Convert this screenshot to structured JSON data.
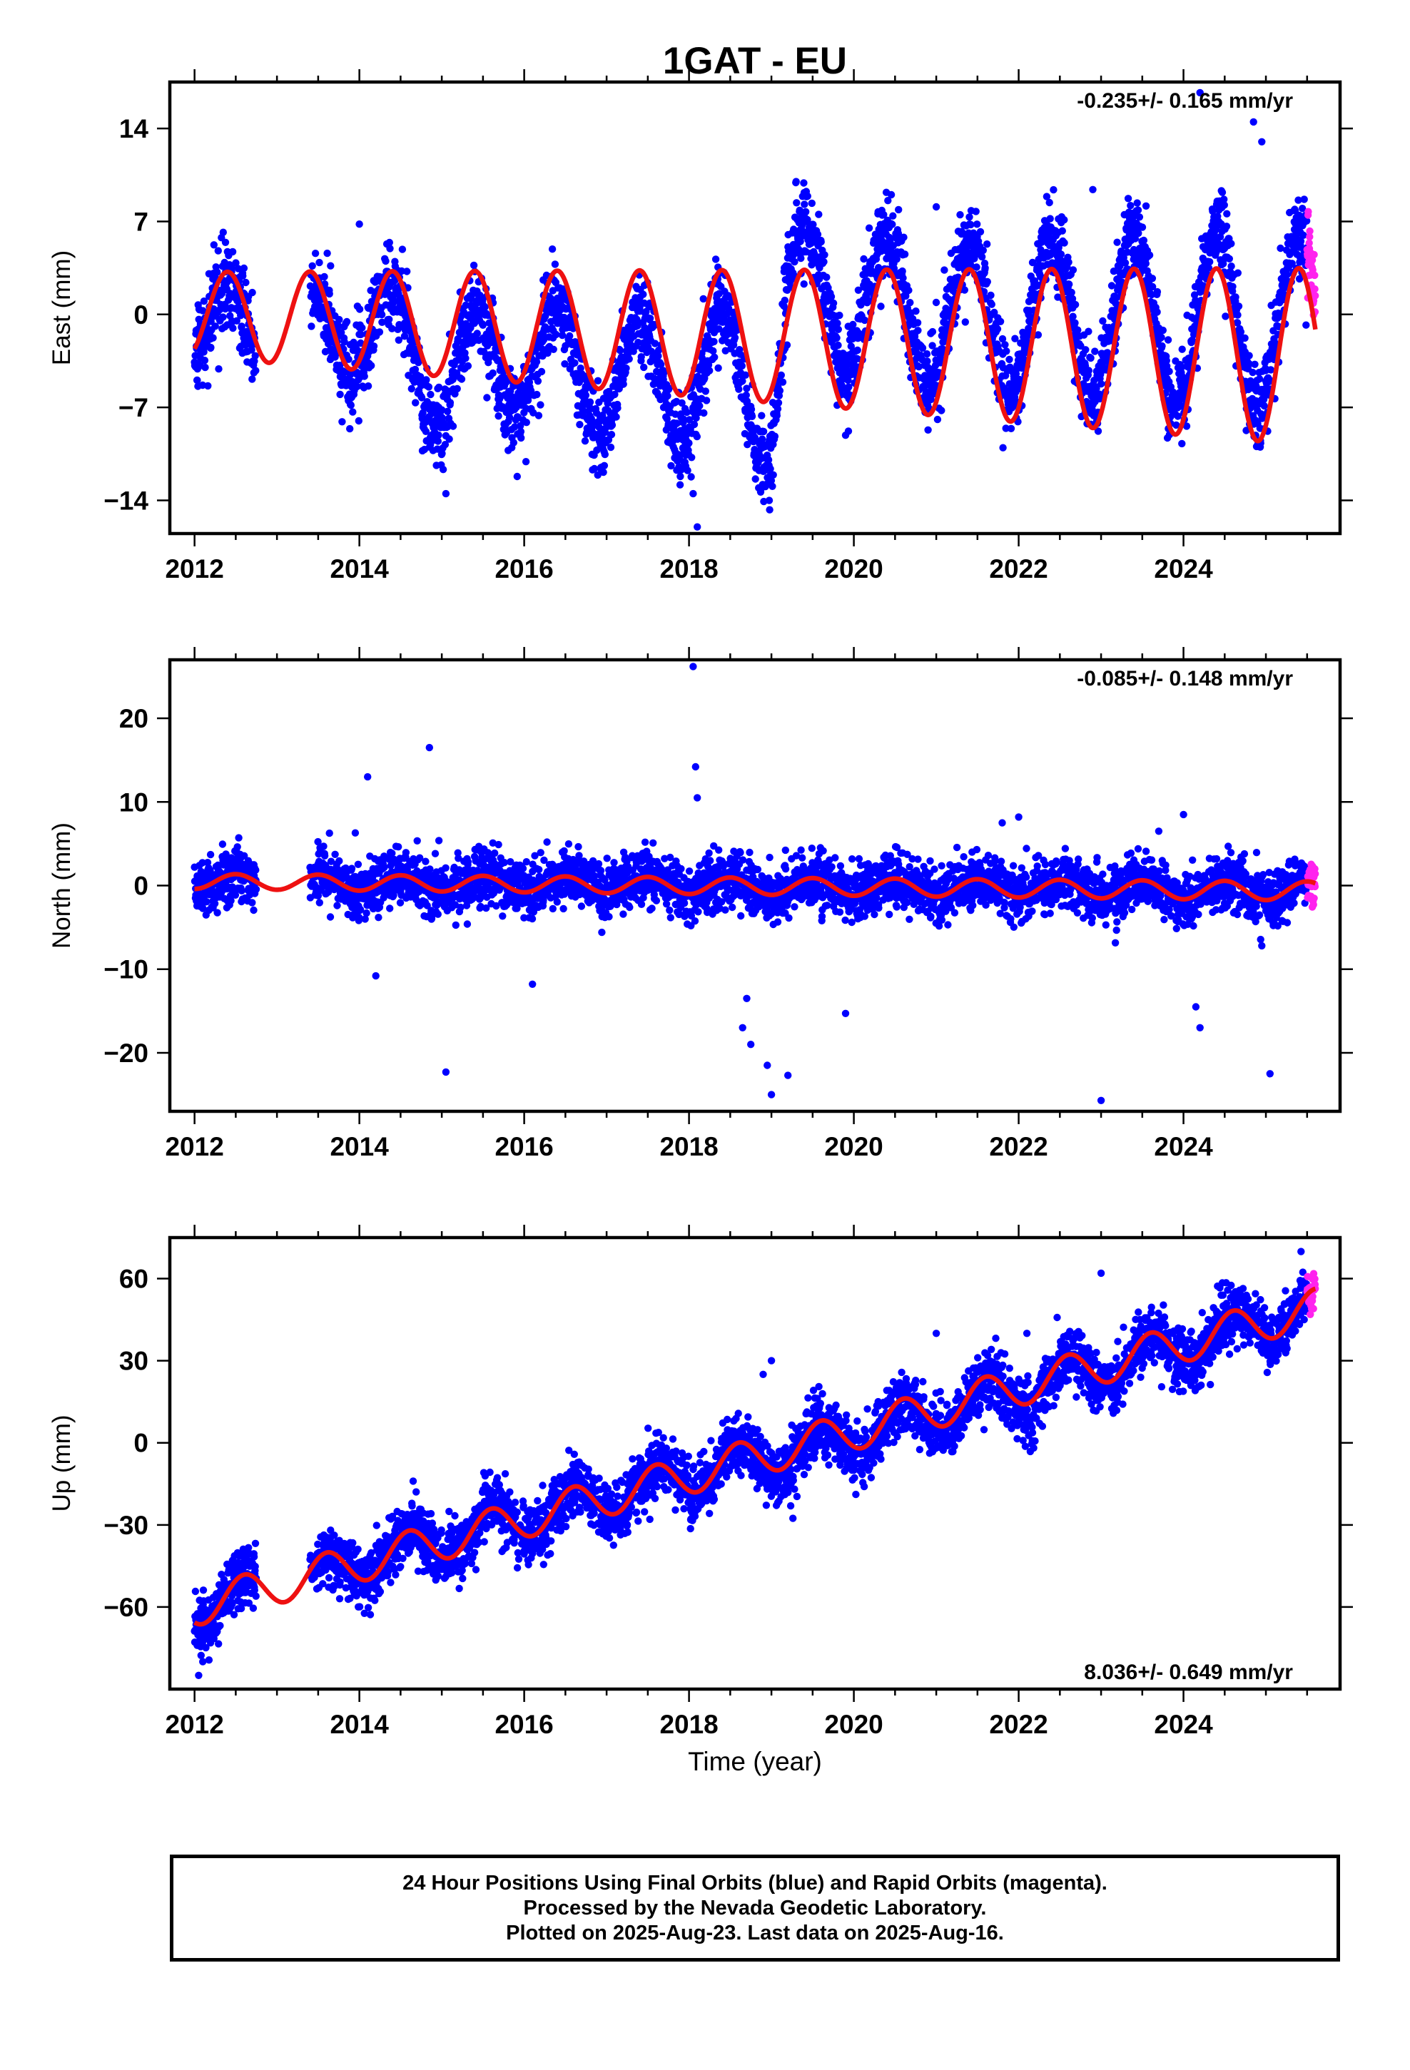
{
  "figure": {
    "title": "1GAT - EU",
    "xlabel": "Time (year)",
    "footer": [
      "24 Hour Positions Using Final Orbits (blue) and Rapid Orbits (magenta).",
      "Processed by the Nevada Geodetic Laboratory.",
      "Plotted on 2025-Aug-23. Last data on 2025-Aug-16."
    ],
    "colors": {
      "final": "#0000ff",
      "rapid": "#ff22ee",
      "model": "#ee1111",
      "frame": "#000000"
    }
  },
  "chart_data": [
    {
      "type": "scatter",
      "name": "east",
      "ylabel": "East (mm)",
      "rate_text": "-0.235+/- 0.165 mm/yr",
      "rate_position": "top-right",
      "xlim": [
        2011.7,
        2025.9
      ],
      "ylim": [
        -16.5,
        17.5
      ],
      "xticks": [
        2012,
        2014,
        2016,
        2018,
        2020,
        2022,
        2024
      ],
      "xtick_labels": [
        "2012",
        "2014",
        "2016",
        "2018",
        "2020",
        "2022",
        "2024"
      ],
      "yticks": [
        -14,
        -7,
        0,
        7,
        14
      ],
      "ytick_labels": [
        "−14",
        "−7",
        "0",
        "7",
        "14"
      ],
      "data_start": 2012.0,
      "data_end": 2025.6,
      "gap": [
        2012.75,
        2013.4
      ],
      "model": {
        "rate": -0.235,
        "offset": 0.0,
        "base_year": 2012.0,
        "annual_amplitude": 3.2,
        "phase_year": 2012.4,
        "amplitude_growth": 0.08
      },
      "residual_pattern": {
        "years": [
          2012.0,
          2013.5,
          2014.0,
          2014.5,
          2015.0,
          2016.0,
          2017.0,
          2018.0,
          2018.5,
          2019.0,
          2019.2,
          2020.0,
          2021.0,
          2022.0,
          2023.0,
          2024.0,
          2025.6
        ],
        "means": [
          -1.0,
          -1.0,
          0.0,
          -1.5,
          -4.0,
          -2.0,
          -3.5,
          -3.5,
          -3.0,
          -5.0,
          3.5,
          3.0,
          2.0,
          2.0,
          2.5,
          2.5,
          2.5
        ]
      },
      "scatter_sd": 1.6,
      "outliers": [
        [
          2014.0,
          6.8
        ],
        [
          2015.05,
          -13.5
        ],
        [
          2018.1,
          -16.0
        ],
        [
          2018.05,
          -13.5
        ],
        [
          2019.3,
          10.0
        ],
        [
          2022.9,
          9.4
        ],
        [
          2024.2,
          16.7
        ],
        [
          2024.85,
          14.5
        ],
        [
          2024.95,
          13.0
        ],
        [
          2021.0,
          8.1
        ],
        [
          2019.9,
          -9.1
        ],
        [
          2023.95,
          -5.9
        ]
      ]
    },
    {
      "type": "scatter",
      "name": "north",
      "ylabel": "North (mm)",
      "rate_text": "-0.085+/- 0.148 mm/yr",
      "rate_position": "top-right",
      "xlim": [
        2011.7,
        2025.9
      ],
      "ylim": [
        -27,
        27
      ],
      "xticks": [
        2012,
        2014,
        2016,
        2018,
        2020,
        2022,
        2024
      ],
      "xtick_labels": [
        "2012",
        "2014",
        "2016",
        "2018",
        "2020",
        "2022",
        "2024"
      ],
      "yticks": [
        -20,
        -10,
        0,
        10,
        20
      ],
      "ytick_labels": [
        "−20",
        "−10",
        "0",
        "10",
        "20"
      ],
      "data_start": 2012.0,
      "data_end": 2025.6,
      "gap": [
        2012.75,
        2013.4
      ],
      "model": {
        "rate": -0.085,
        "offset": 0.5,
        "base_year": 2012.0,
        "annual_amplitude": 0.9,
        "phase_year": 2012.5,
        "amplitude_growth": 0.02
      },
      "residual_pattern": {
        "years": [
          2012.0,
          2025.6
        ],
        "means": [
          0.0,
          0.0
        ]
      },
      "scatter_sd": 1.6,
      "outliers": [
        [
          2014.1,
          13.0
        ],
        [
          2014.2,
          -10.8
        ],
        [
          2013.95,
          6.3
        ],
        [
          2014.85,
          16.5
        ],
        [
          2015.05,
          -22.3
        ],
        [
          2016.1,
          -11.8
        ],
        [
          2018.05,
          26.2
        ],
        [
          2018.08,
          14.2
        ],
        [
          2018.1,
          10.5
        ],
        [
          2018.7,
          -13.5
        ],
        [
          2018.75,
          -19.0
        ],
        [
          2018.65,
          -17.0
        ],
        [
          2019.0,
          -25.0
        ],
        [
          2018.95,
          -21.5
        ],
        [
          2019.2,
          -22.7
        ],
        [
          2019.9,
          -15.3
        ],
        [
          2023.0,
          -25.7
        ],
        [
          2024.15,
          -14.5
        ],
        [
          2024.2,
          -17.0
        ],
        [
          2025.05,
          -22.5
        ],
        [
          2024.95,
          -7.2
        ],
        [
          2022.0,
          8.2
        ],
        [
          2021.8,
          7.5
        ],
        [
          2023.7,
          6.5
        ],
        [
          2024.0,
          8.5
        ]
      ]
    },
    {
      "type": "scatter",
      "name": "up",
      "ylabel": "Up (mm)",
      "rate_text": "8.036+/- 0.649 mm/yr",
      "rate_position": "bottom-right",
      "xlim": [
        2011.7,
        2025.9
      ],
      "ylim": [
        -90,
        75
      ],
      "xticks": [
        2012,
        2014,
        2016,
        2018,
        2020,
        2022,
        2024
      ],
      "xtick_labels": [
        "2012",
        "2014",
        "2016",
        "2018",
        "2020",
        "2022",
        "2024"
      ],
      "yticks": [
        -60,
        -30,
        0,
        30,
        60
      ],
      "ytick_labels": [
        "−60",
        "−30",
        "0",
        "30",
        "60"
      ],
      "data_start": 2012.0,
      "data_end": 2025.6,
      "gap": [
        2012.75,
        2013.4
      ],
      "model": {
        "rate": 8.036,
        "offset": -60.0,
        "base_year": 2012.0,
        "annual_amplitude": 7.0,
        "phase_year": 2012.6,
        "amplitude_growth": 0.0
      },
      "residual_pattern": {
        "years": [
          2012.0,
          2018.8,
          2019.0,
          2025.6
        ],
        "means": [
          0.0,
          0.0,
          -3.0,
          0.0
        ]
      },
      "scatter_sd": 5.5,
      "outliers": [
        [
          2012.05,
          -85.0
        ],
        [
          2012.1,
          -80.0
        ],
        [
          2018.9,
          25.0
        ],
        [
          2019.0,
          30.0
        ],
        [
          2023.0,
          62.0
        ],
        [
          2021.0,
          40.0
        ],
        [
          2022.1,
          40.0
        ]
      ]
    }
  ]
}
